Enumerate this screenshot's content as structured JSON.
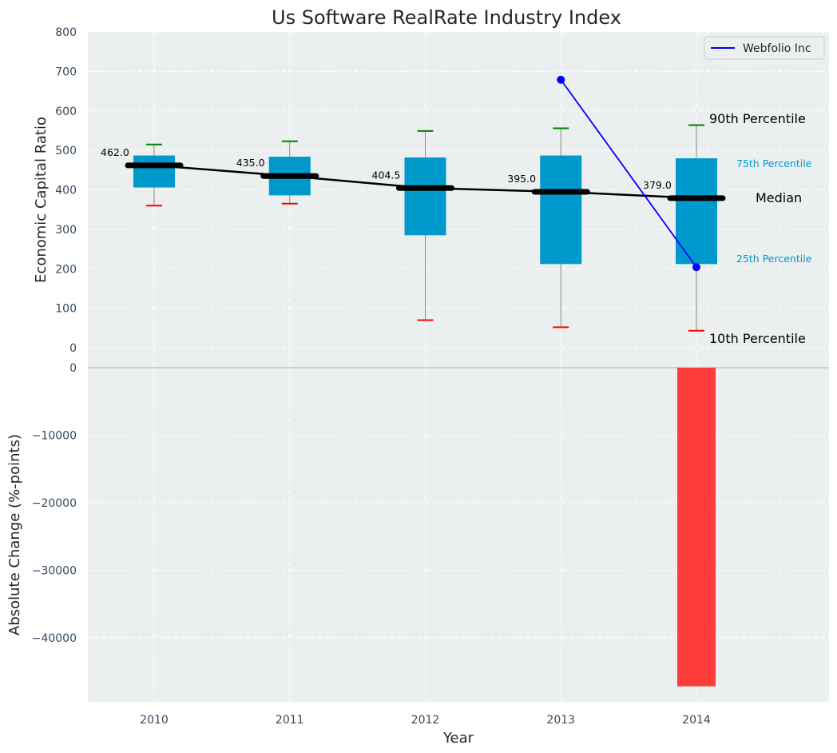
{
  "chart_data": [
    {
      "type": "box",
      "title": "Us Software RealRate Industry Index",
      "ylabel": "Economic Capital Ratio",
      "ylim": [
        0,
        800
      ],
      "yticks": [
        0,
        100,
        200,
        300,
        400,
        500,
        600,
        700,
        800
      ],
      "categories": [
        "2010",
        "2011",
        "2012",
        "2013",
        "2014"
      ],
      "p10": [
        360,
        365,
        70,
        52,
        43
      ],
      "p25": [
        406,
        386,
        285,
        212,
        212
      ],
      "median": [
        462.0,
        435.0,
        404.5,
        395.0,
        379.0
      ],
      "median_labels": [
        "462.0",
        "435.0",
        "404.5",
        "395.0",
        "379.0"
      ],
      "p75": [
        487,
        484,
        482,
        487,
        480
      ],
      "p90": [
        515,
        523,
        549,
        556,
        564
      ],
      "series": [
        {
          "name": "Webfolio Inc",
          "x": [
            "2013",
            "2014"
          ],
          "values": [
            679,
            204
          ],
          "color": "#0000ff"
        }
      ],
      "annotations": {
        "p90": "90th Percentile",
        "p75": "75th Percentile",
        "median": "Median",
        "p25": "25th Percentile",
        "p10": "10th Percentile"
      },
      "legend_position": "top-right",
      "grid": true,
      "colors": {
        "box": "#0099cc",
        "median": "#000000",
        "p90_cap": "#008000",
        "p10_cap": "#ff0000",
        "whisker": "#888888"
      }
    },
    {
      "type": "bar",
      "xlabel": "Year",
      "ylabel": "Absolute Change (%-points)",
      "ylim": [
        -49500,
        0
      ],
      "yticks": [
        0,
        -10000,
        -20000,
        -30000,
        -40000
      ],
      "ytick_labels": [
        "0",
        "−10000",
        "−20000",
        "−30000",
        "−40000"
      ],
      "categories": [
        "2010",
        "2011",
        "2012",
        "2013",
        "2014"
      ],
      "values": [
        0,
        0,
        0,
        0,
        -47200
      ],
      "grid": true,
      "colors": {
        "negative": "#ff3d3d"
      }
    }
  ]
}
